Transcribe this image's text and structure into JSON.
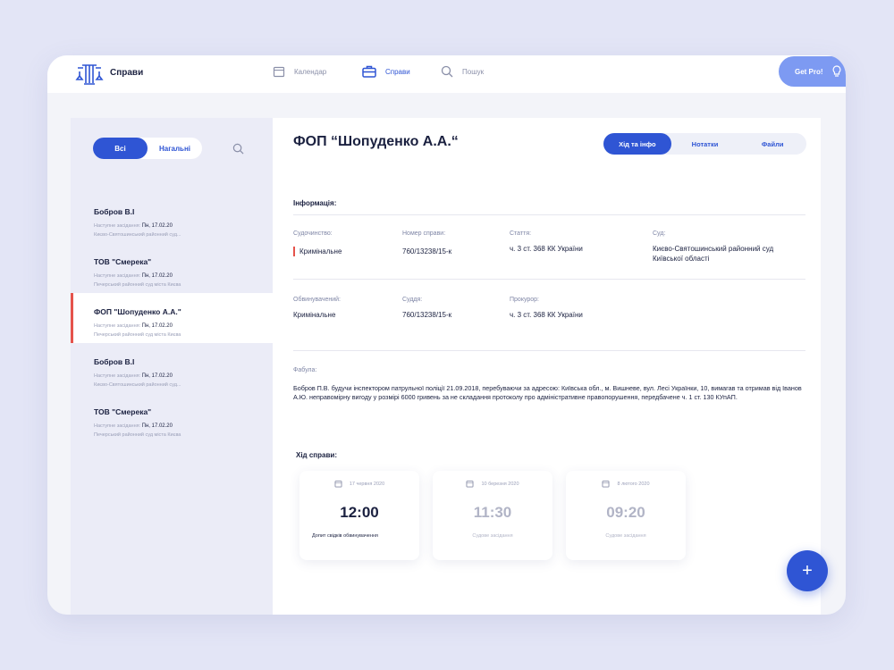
{
  "header": {
    "brand": "Справи",
    "nav": [
      {
        "label": "Календар",
        "icon": "calendar-icon"
      },
      {
        "label": "Справи",
        "icon": "briefcase-icon",
        "active": true
      },
      {
        "label": "Пошук",
        "icon": "search-icon"
      }
    ],
    "get_pro": "Get Pro!"
  },
  "sidebar": {
    "filters": [
      "Всі",
      "Нагальні"
    ],
    "active_filter": "Всі",
    "cases": [
      {
        "name": "Бобров В.І",
        "next_label": "Наступне засідання:",
        "next_date": "Пн, 17.02.20",
        "court": "Києво-Святошинський районний суд..."
      },
      {
        "name": "ТОВ \"Смерека\"",
        "next_label": "Наступне засідання:",
        "next_date": "Пн, 17.02.20",
        "court": "Печерський районний суд міста Києва"
      },
      {
        "name": "ФОП \"Шопуденко А.А.\"",
        "next_label": "Наступне засідання:",
        "next_date": "Пн, 17.02.20",
        "court": "Печерський районний суд міста Києва",
        "selected": true
      },
      {
        "name": "Бобров В.І",
        "next_label": "Наступне засідання:",
        "next_date": "Пн, 17.02.20",
        "court": "Києво-Святошинський районний суд..."
      },
      {
        "name": "ТОВ \"Смерека\"",
        "next_label": "Наступне засідання:",
        "next_date": "Пн, 17.02.20",
        "court": "Печерський районний суд міста Києва"
      }
    ]
  },
  "main": {
    "title": "ФОП “Шопуденко А.А.“",
    "tabs": [
      "Хід та інфо",
      "Нотатки",
      "Файли"
    ],
    "info_heading": "Інформація:",
    "row1": [
      {
        "label": "Судочинство:",
        "value": "Кримінальне"
      },
      {
        "label": "Номер справи:",
        "value": "760/13238/15-к"
      },
      {
        "label": "Стаття:",
        "value": "ч. 3 ст. 368 КК України"
      },
      {
        "label": "Суд:",
        "value": "Києво-Святошинський районний суд Київської області"
      }
    ],
    "row2": [
      {
        "label": "Обвинувачений:",
        "value": "Кримінальне"
      },
      {
        "label": "Суддя:",
        "value": "760/13238/15-к"
      },
      {
        "label": "Прокурор:",
        "value": "ч. 3 ст. 368 КК України"
      }
    ],
    "fabula_label": "Фабула:",
    "fabula": "Бобров П.В. будучи інспектором патрульної поліції 21.09.2018, перебуваючи за адресою: Київська обл., м. Вишневе, вул. Лесі Українки, 10, вимагав та отримав від Іванов А.Ю. неправомірну вигоду у розмірі 6000 гривень за не складання протоколу про адміністративне правопорушення, передбачене ч. 1 ст. 130 КУпАП.",
    "progress_heading": "Хід справи:",
    "events": [
      {
        "date": "17 червня 2020",
        "time": "12:00",
        "desc": "Допит свідків обвинувачення"
      },
      {
        "date": "10 березня 2020",
        "time": "11:30",
        "desc": "Судове засідання"
      },
      {
        "date": "8 лютого 2020",
        "time": "09:20",
        "desc": "Судове засідання"
      }
    ],
    "fab": "+"
  },
  "colors": {
    "accent": "#2f55d4",
    "selected_marker": "#e5534b",
    "get_pro": "#7d9af2"
  }
}
